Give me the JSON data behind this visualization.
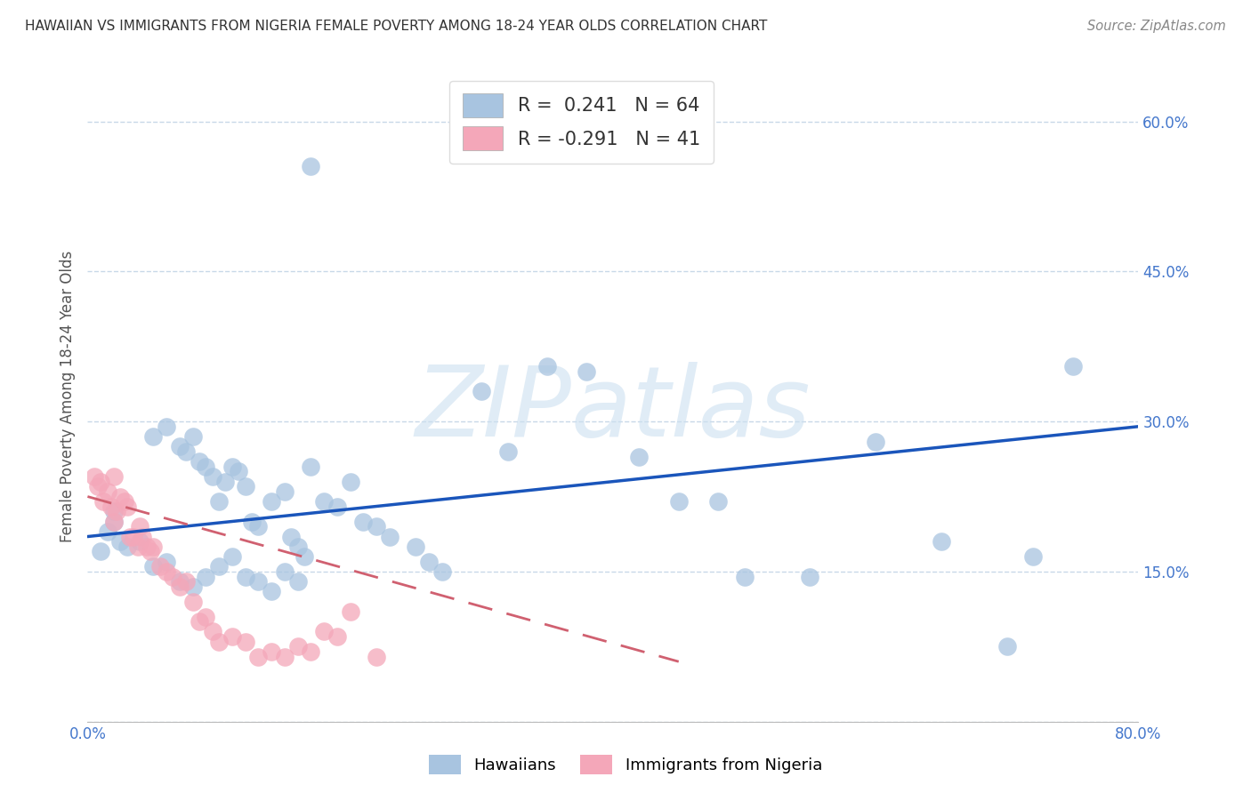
{
  "title": "HAWAIIAN VS IMMIGRANTS FROM NIGERIA FEMALE POVERTY AMONG 18-24 YEAR OLDS CORRELATION CHART",
  "source": "Source: ZipAtlas.com",
  "ylabel": "Female Poverty Among 18-24 Year Olds",
  "watermark": "ZIPatlas",
  "xlim": [
    0.0,
    0.8
  ],
  "ylim": [
    0.0,
    0.65
  ],
  "yticks": [
    0.0,
    0.15,
    0.3,
    0.45,
    0.6
  ],
  "ytick_labels": [
    "",
    "15.0%",
    "30.0%",
    "45.0%",
    "60.0%"
  ],
  "xtick_labels": [
    "0.0%",
    "",
    "",
    "",
    "",
    "",
    "",
    "",
    "80.0%"
  ],
  "hawaiian_R": 0.241,
  "hawaiian_N": 64,
  "nigeria_R": -0.291,
  "nigeria_N": 41,
  "hawaiian_color": "#a8c4e0",
  "nigeria_color": "#f4a7b9",
  "hawaiian_line_color": "#1a55bb",
  "nigeria_line_color": "#d06070",
  "legend_label_hawaii": "Hawaiians",
  "legend_label_nigeria": "Immigrants from Nigeria",
  "hawaii_x": [
    0.17,
    0.02,
    0.025,
    0.015,
    0.01,
    0.02,
    0.03,
    0.04,
    0.05,
    0.06,
    0.07,
    0.08,
    0.09,
    0.1,
    0.11,
    0.12,
    0.13,
    0.14,
    0.15,
    0.16,
    0.05,
    0.06,
    0.07,
    0.075,
    0.08,
    0.085,
    0.09,
    0.095,
    0.1,
    0.105,
    0.11,
    0.115,
    0.12,
    0.125,
    0.13,
    0.14,
    0.15,
    0.155,
    0.16,
    0.165,
    0.17,
    0.18,
    0.19,
    0.2,
    0.21,
    0.22,
    0.23,
    0.25,
    0.26,
    0.27,
    0.3,
    0.32,
    0.35,
    0.38,
    0.42,
    0.45,
    0.48,
    0.5,
    0.55,
    0.6,
    0.65,
    0.7,
    0.72,
    0.75
  ],
  "hawaii_y": [
    0.555,
    0.2,
    0.18,
    0.19,
    0.17,
    0.21,
    0.175,
    0.18,
    0.155,
    0.16,
    0.14,
    0.135,
    0.145,
    0.155,
    0.165,
    0.145,
    0.14,
    0.13,
    0.15,
    0.14,
    0.285,
    0.295,
    0.275,
    0.27,
    0.285,
    0.26,
    0.255,
    0.245,
    0.22,
    0.24,
    0.255,
    0.25,
    0.235,
    0.2,
    0.195,
    0.22,
    0.23,
    0.185,
    0.175,
    0.165,
    0.255,
    0.22,
    0.215,
    0.24,
    0.2,
    0.195,
    0.185,
    0.175,
    0.16,
    0.15,
    0.33,
    0.27,
    0.355,
    0.35,
    0.265,
    0.22,
    0.22,
    0.145,
    0.145,
    0.28,
    0.18,
    0.075,
    0.165,
    0.355
  ],
  "nigeria_x": [
    0.005,
    0.008,
    0.01,
    0.012,
    0.015,
    0.018,
    0.02,
    0.02,
    0.022,
    0.025,
    0.028,
    0.03,
    0.032,
    0.035,
    0.038,
    0.04,
    0.042,
    0.045,
    0.048,
    0.05,
    0.055,
    0.06,
    0.065,
    0.07,
    0.075,
    0.08,
    0.085,
    0.09,
    0.095,
    0.1,
    0.11,
    0.12,
    0.13,
    0.14,
    0.15,
    0.16,
    0.17,
    0.18,
    0.19,
    0.2,
    0.22
  ],
  "nigeria_y": [
    0.245,
    0.235,
    0.24,
    0.22,
    0.23,
    0.215,
    0.245,
    0.2,
    0.21,
    0.225,
    0.22,
    0.215,
    0.185,
    0.185,
    0.175,
    0.195,
    0.185,
    0.175,
    0.17,
    0.175,
    0.155,
    0.15,
    0.145,
    0.135,
    0.14,
    0.12,
    0.1,
    0.105,
    0.09,
    0.08,
    0.085,
    0.08,
    0.065,
    0.07,
    0.065,
    0.075,
    0.07,
    0.09,
    0.085,
    0.11,
    0.065
  ],
  "haw_line_x0": 0.0,
  "haw_line_y0": 0.185,
  "haw_line_x1": 0.8,
  "haw_line_y1": 0.295,
  "nig_line_x0": 0.0,
  "nig_line_y0": 0.225,
  "nig_line_x1": 0.45,
  "nig_line_y1": 0.06
}
